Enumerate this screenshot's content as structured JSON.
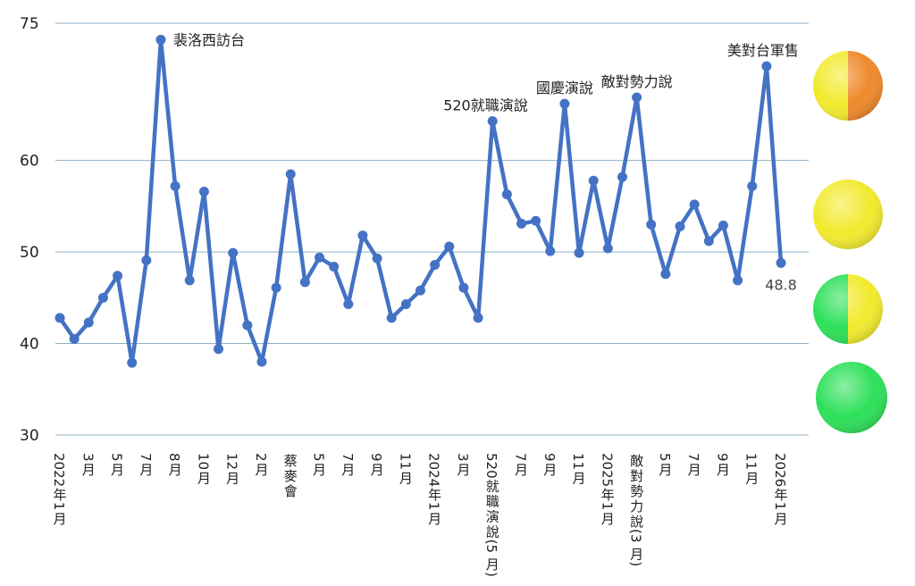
{
  "chart_data": {
    "type": "line",
    "title": "",
    "xlabel": "",
    "ylabel": "",
    "ylim": [
      30,
      75
    ],
    "y_ticks": [
      30,
      40,
      50,
      60,
      75
    ],
    "grid": true,
    "series": [
      {
        "color": "#4472c4",
        "values": [
          42.8,
          40.5,
          42.3,
          45,
          47.4,
          37.9,
          49.1,
          73.2,
          57.2,
          46.9,
          56.6,
          39.4,
          49.9,
          42,
          38,
          46.1,
          58.5,
          46.7,
          49.4,
          48.4,
          44.3,
          51.8,
          49.3,
          42.8,
          44.3,
          45.8,
          48.6,
          50.6,
          46.1,
          42.8,
          64.3,
          56.3,
          53.1,
          53.4,
          50.1,
          66.2,
          49.9,
          57.8,
          50.4,
          58.2,
          66.9,
          53,
          47.6,
          52.8,
          55.2,
          51.2,
          52.9,
          46.9,
          57.2,
          70.3,
          48.8
        ]
      }
    ],
    "x_tick_labels": [
      {
        "index": 0,
        "label": "2022年1月"
      },
      {
        "index": 2,
        "label": "3月"
      },
      {
        "index": 4,
        "label": "5月"
      },
      {
        "index": 6,
        "label": "7月"
      },
      {
        "index": 8,
        "label": "8月"
      },
      {
        "index": 10,
        "label": "10月"
      },
      {
        "index": 12,
        "label": "12月"
      },
      {
        "index": 14,
        "label": "2月"
      },
      {
        "index": 16,
        "label": "蔡麥會"
      },
      {
        "index": 18,
        "label": "5月"
      },
      {
        "index": 20,
        "label": "7月"
      },
      {
        "index": 22,
        "label": "9月"
      },
      {
        "index": 24,
        "label": "11月"
      },
      {
        "index": 26,
        "label": "2024年1月"
      },
      {
        "index": 28,
        "label": "3月"
      },
      {
        "index": 30,
        "label": "520就職演說(5月)"
      },
      {
        "index": 32,
        "label": "7月"
      },
      {
        "index": 34,
        "label": "9月"
      },
      {
        "index": 36,
        "label": "11月"
      },
      {
        "index": 38,
        "label": "2025年1月"
      },
      {
        "index": 40,
        "label": "敵對勢力說(3月)"
      },
      {
        "index": 42,
        "label": "5月"
      },
      {
        "index": 44,
        "label": "7月"
      },
      {
        "index": 46,
        "label": "9月"
      },
      {
        "index": 48,
        "label": "11月"
      },
      {
        "index": 50,
        "label": "2026年1月"
      }
    ],
    "annotations": [
      {
        "index": 7,
        "text": "裴洛西訪台"
      },
      {
        "index": 30,
        "text": "520就職演說"
      },
      {
        "index": 35,
        "text": "國慶演說"
      },
      {
        "index": 40,
        "text": "敵對勢力說"
      },
      {
        "index": 49,
        "text": "美對台軍售"
      }
    ],
    "last_value_label": "48.8",
    "legend_circles": [
      {
        "name": "yellow-orange",
        "colors": [
          "#f2ea2e",
          "#ef8a2c"
        ]
      },
      {
        "name": "yellow",
        "colors": [
          "#f2ea2e",
          "#f2ea2e"
        ]
      },
      {
        "name": "green-yellow",
        "colors": [
          "#2ee05a",
          "#f2ea2e"
        ]
      },
      {
        "name": "green",
        "colors": [
          "#2ee05a",
          "#2ee05a"
        ]
      }
    ]
  }
}
